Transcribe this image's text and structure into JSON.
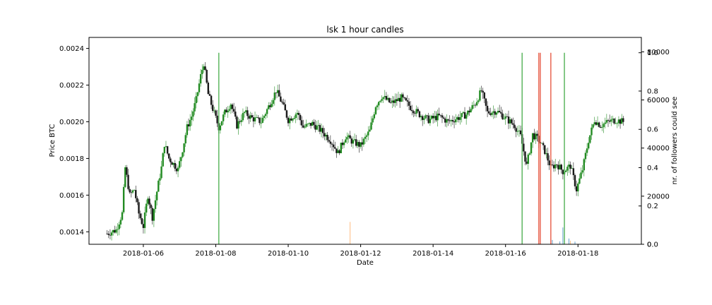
{
  "chart_data": {
    "type": "candlestick",
    "title": "lsk 1 hour candles",
    "xlabel": "Date",
    "ylabel": "Price BTC",
    "y2label": "nr. of followers could see",
    "x_ticks": [
      "2018-01-06",
      "2018-01-08",
      "2018-01-10",
      "2018-01-12",
      "2018-01-14",
      "2018-01-16",
      "2018-01-18"
    ],
    "x_range": [
      "2018-01-04 12:00",
      "2018-01-19 18:00"
    ],
    "y_ticks": [
      0.0014,
      0.0016,
      0.0018,
      0.002,
      0.0022,
      0.0024
    ],
    "y_ticks_labels": [
      "0.0014",
      "0.0016",
      "0.0018",
      "0.0020",
      "0.0022",
      "0.0024"
    ],
    "ylim": [
      0.001332,
      0.00246
    ],
    "y2_ticks": [
      0,
      20000,
      40000,
      60000,
      80000
    ],
    "y2_ticks_labels": [
      "0",
      "20000",
      "40000",
      "60000",
      "80000"
    ],
    "y3_ticks": [
      0.0,
      0.2,
      0.4,
      0.6,
      0.8,
      1.0
    ],
    "y3_ticks_labels": [
      "0.0",
      "0.2",
      "0.4",
      "0.6",
      "0.8",
      "1.0"
    ],
    "colors": {
      "up": "#228b22",
      "down": "#1a1a1a",
      "signal_green": "#4caf50",
      "signal_red": "#e8604c",
      "follower_orange": "#ff9f4a",
      "follower_blue": "#1f77b4"
    },
    "price_series": [
      [
        "2018-01-05 00:00",
        0.00139
      ],
      [
        "2018-01-05 06:00",
        0.00141
      ],
      [
        "2018-01-05 10:00",
        0.0015
      ],
      [
        "2018-01-05 12:00",
        0.00175
      ],
      [
        "2018-01-05 15:00",
        0.0016
      ],
      [
        "2018-01-05 18:00",
        0.00163
      ],
      [
        "2018-01-05 21:00",
        0.0015
      ],
      [
        "2018-01-06 00:00",
        0.00143
      ],
      [
        "2018-01-06 03:00",
        0.0016
      ],
      [
        "2018-01-06 06:00",
        0.00148
      ],
      [
        "2018-01-06 09:00",
        0.00162
      ],
      [
        "2018-01-06 12:00",
        0.00175
      ],
      [
        "2018-01-06 14:00",
        0.00188
      ],
      [
        "2018-01-06 17:00",
        0.0018
      ],
      [
        "2018-01-06 20:00",
        0.00177
      ],
      [
        "2018-01-06 23:00",
        0.00174
      ],
      [
        "2018-01-07 02:00",
        0.00185
      ],
      [
        "2018-01-07 05:00",
        0.00197
      ],
      [
        "2018-01-07 08:00",
        0.00203
      ],
      [
        "2018-01-07 11:00",
        0.00212
      ],
      [
        "2018-01-07 14:00",
        0.00225
      ],
      [
        "2018-01-07 16:00",
        0.00232
      ],
      [
        "2018-01-07 19:00",
        0.00215
      ],
      [
        "2018-01-07 22:00",
        0.00207
      ],
      [
        "2018-01-08 02:00",
        0.00197
      ],
      [
        "2018-01-08 06:00",
        0.00205
      ],
      [
        "2018-01-08 10:00",
        0.0021
      ],
      [
        "2018-01-08 14:00",
        0.00198
      ],
      [
        "2018-01-08 19:00",
        0.00205
      ],
      [
        "2018-01-09 00:00",
        0.00202
      ],
      [
        "2018-01-09 06:00",
        0.002
      ],
      [
        "2018-01-09 12:00",
        0.0021
      ],
      [
        "2018-01-09 16:00",
        0.00217
      ],
      [
        "2018-01-09 20:00",
        0.0021
      ],
      [
        "2018-01-10 00:00",
        0.00201
      ],
      [
        "2018-01-10 06:00",
        0.00205
      ],
      [
        "2018-01-10 10:00",
        0.00197
      ],
      [
        "2018-01-10 16:00",
        0.00199
      ],
      [
        "2018-01-10 22:00",
        0.00195
      ],
      [
        "2018-01-11 04:00",
        0.0019
      ],
      [
        "2018-01-11 09:00",
        0.00183
      ],
      [
        "2018-01-11 14:00",
        0.00192
      ],
      [
        "2018-01-11 19:00",
        0.00189
      ],
      [
        "2018-01-12 00:00",
        0.00187
      ],
      [
        "2018-01-12 06:00",
        0.00195
      ],
      [
        "2018-01-12 10:00",
        0.00209
      ],
      [
        "2018-01-12 14:00",
        0.00214
      ],
      [
        "2018-01-12 20:00",
        0.0021
      ],
      [
        "2018-01-13 03:00",
        0.00213
      ],
      [
        "2018-01-13 09:00",
        0.00208
      ],
      [
        "2018-01-13 15:00",
        0.00204
      ],
      [
        "2018-01-13 21:00",
        0.00201
      ],
      [
        "2018-01-14 04:00",
        0.00203
      ],
      [
        "2018-01-14 10:00",
        0.002
      ],
      [
        "2018-01-14 16:00",
        0.00202
      ],
      [
        "2018-01-14 22:00",
        0.00204
      ],
      [
        "2018-01-15 04:00",
        0.0021
      ],
      [
        "2018-01-15 08:00",
        0.00217
      ],
      [
        "2018-01-15 12:00",
        0.00205
      ],
      [
        "2018-01-15 18:00",
        0.00206
      ],
      [
        "2018-01-16 00:00",
        0.00202
      ],
      [
        "2018-01-16 06:00",
        0.00198
      ],
      [
        "2018-01-16 10:00",
        0.00192
      ],
      [
        "2018-01-16 14:00",
        0.00176
      ],
      [
        "2018-01-16 18:00",
        0.00193
      ],
      [
        "2018-01-16 22:00",
        0.0019
      ],
      [
        "2018-01-17 02:00",
        0.00184
      ],
      [
        "2018-01-17 06:00",
        0.00175
      ],
      [
        "2018-01-17 10:00",
        0.00177
      ],
      [
        "2018-01-17 14:00",
        0.00173
      ],
      [
        "2018-01-17 19:00",
        0.00176
      ],
      [
        "2018-01-17 23:00",
        0.00163
      ],
      [
        "2018-01-18 03:00",
        0.00174
      ],
      [
        "2018-01-18 07:00",
        0.0019
      ],
      [
        "2018-01-18 11:00",
        0.00201
      ],
      [
        "2018-01-18 15:00",
        0.00198
      ],
      [
        "2018-01-18 20:00",
        0.002
      ],
      [
        "2018-01-19 01:00",
        0.00201
      ],
      [
        "2018-01-19 06:00",
        0.002
      ]
    ],
    "signal_lines_green": [
      "2018-01-08 02:00",
      "2018-01-16 11:00",
      "2018-01-17 15:00"
    ],
    "signal_lines_red": [
      "2018-01-16 22:00",
      "2018-01-16 23:00",
      "2018-01-17 06:00"
    ],
    "follower_bars": [
      {
        "date": "2018-01-11 17:00",
        "followers": 9300,
        "color": "orange"
      },
      {
        "date": "2018-01-17 07:00",
        "followers": 1800,
        "color": "blue"
      },
      {
        "date": "2018-01-17 12:00",
        "followers": 1200,
        "color": "blue"
      },
      {
        "date": "2018-01-17 14:00",
        "followers": 7000,
        "color": "blue"
      },
      {
        "date": "2018-01-17 18:00",
        "followers": 2400,
        "color": "blue"
      },
      {
        "date": "2018-01-17 19:00",
        "followers": 1500,
        "color": "orange"
      },
      {
        "date": "2018-01-17 22:00",
        "followers": 1100,
        "color": "blue"
      }
    ],
    "follower_max": 86000
  }
}
